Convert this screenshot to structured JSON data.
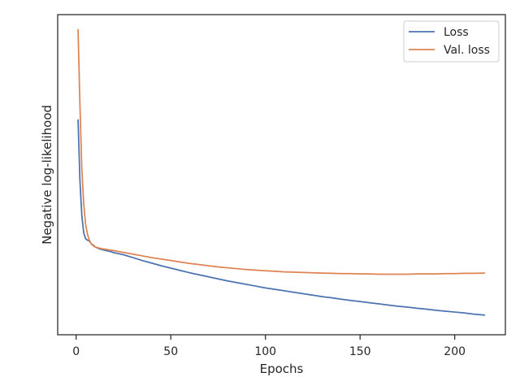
{
  "chart_data": {
    "type": "line",
    "title": "",
    "xlabel": "Epochs",
    "ylabel": "Negative log-likelihood",
    "xlim": [
      -9.75,
      226.75
    ],
    "ylim": [
      -0.05,
      1.05
    ],
    "x_ticks": [
      0,
      50,
      100,
      150,
      200
    ],
    "y_ticks": [],
    "y_tick_labels_visible": false,
    "grid": false,
    "legend_position": "top-right",
    "series": [
      {
        "name": "Loss",
        "color": "#4c72b0",
        "points": [
          [
            1,
            0.69
          ],
          [
            2,
            0.48
          ],
          [
            3,
            0.36
          ],
          [
            4,
            0.3
          ],
          [
            5,
            0.28
          ],
          [
            6,
            0.275
          ],
          [
            7,
            0.272
          ],
          [
            8,
            0.262
          ],
          [
            9,
            0.258
          ],
          [
            10,
            0.252
          ],
          [
            12,
            0.246
          ],
          [
            14,
            0.242
          ],
          [
            16,
            0.239
          ],
          [
            18,
            0.236
          ],
          [
            20,
            0.232
          ],
          [
            25,
            0.225
          ],
          [
            30,
            0.215
          ],
          [
            35,
            0.205
          ],
          [
            40,
            0.196
          ],
          [
            45,
            0.187
          ],
          [
            50,
            0.179
          ],
          [
            55,
            0.171
          ],
          [
            60,
            0.163
          ],
          [
            65,
            0.156
          ],
          [
            70,
            0.149
          ],
          [
            75,
            0.142
          ],
          [
            80,
            0.135
          ],
          [
            85,
            0.129
          ],
          [
            90,
            0.123
          ],
          [
            95,
            0.117
          ],
          [
            100,
            0.111
          ],
          [
            105,
            0.106
          ],
          [
            110,
            0.101
          ],
          [
            115,
            0.096
          ],
          [
            120,
            0.091
          ],
          [
            125,
            0.086
          ],
          [
            130,
            0.081
          ],
          [
            135,
            0.077
          ],
          [
            140,
            0.072
          ],
          [
            145,
            0.068
          ],
          [
            150,
            0.064
          ],
          [
            155,
            0.06
          ],
          [
            160,
            0.056
          ],
          [
            165,
            0.052
          ],
          [
            170,
            0.048
          ],
          [
            175,
            0.045
          ],
          [
            180,
            0.041
          ],
          [
            185,
            0.038
          ],
          [
            190,
            0.034
          ],
          [
            195,
            0.031
          ],
          [
            200,
            0.028
          ],
          [
            205,
            0.025
          ],
          [
            210,
            0.021
          ],
          [
            215,
            0.018
          ],
          [
            216,
            0.017
          ]
        ]
      },
      {
        "name": "Val. loss",
        "color": "#dd8452",
        "points": [
          [
            1,
            1.0
          ],
          [
            2,
            0.74
          ],
          [
            3,
            0.52
          ],
          [
            4,
            0.4
          ],
          [
            5,
            0.33
          ],
          [
            6,
            0.295
          ],
          [
            7,
            0.275
          ],
          [
            8,
            0.262
          ],
          [
            9,
            0.256
          ],
          [
            10,
            0.252
          ],
          [
            12,
            0.248
          ],
          [
            14,
            0.245
          ],
          [
            16,
            0.243
          ],
          [
            18,
            0.241
          ],
          [
            20,
            0.239
          ],
          [
            25,
            0.233
          ],
          [
            30,
            0.227
          ],
          [
            35,
            0.221
          ],
          [
            40,
            0.215
          ],
          [
            45,
            0.21
          ],
          [
            50,
            0.205
          ],
          [
            55,
            0.2
          ],
          [
            60,
            0.195
          ],
          [
            65,
            0.191
          ],
          [
            70,
            0.187
          ],
          [
            75,
            0.183
          ],
          [
            80,
            0.18
          ],
          [
            85,
            0.177
          ],
          [
            90,
            0.174
          ],
          [
            95,
            0.172
          ],
          [
            100,
            0.17
          ],
          [
            105,
            0.168
          ],
          [
            110,
            0.166
          ],
          [
            115,
            0.165
          ],
          [
            120,
            0.164
          ],
          [
            125,
            0.163
          ],
          [
            130,
            0.162
          ],
          [
            135,
            0.161
          ],
          [
            140,
            0.16
          ],
          [
            145,
            0.16
          ],
          [
            150,
            0.159
          ],
          [
            155,
            0.159
          ],
          [
            160,
            0.158
          ],
          [
            165,
            0.158
          ],
          [
            170,
            0.158
          ],
          [
            175,
            0.158
          ],
          [
            180,
            0.159
          ],
          [
            185,
            0.159
          ],
          [
            190,
            0.159
          ],
          [
            195,
            0.16
          ],
          [
            200,
            0.16
          ],
          [
            205,
            0.161
          ],
          [
            210,
            0.161
          ],
          [
            215,
            0.162
          ],
          [
            216,
            0.162
          ]
        ]
      }
    ]
  }
}
